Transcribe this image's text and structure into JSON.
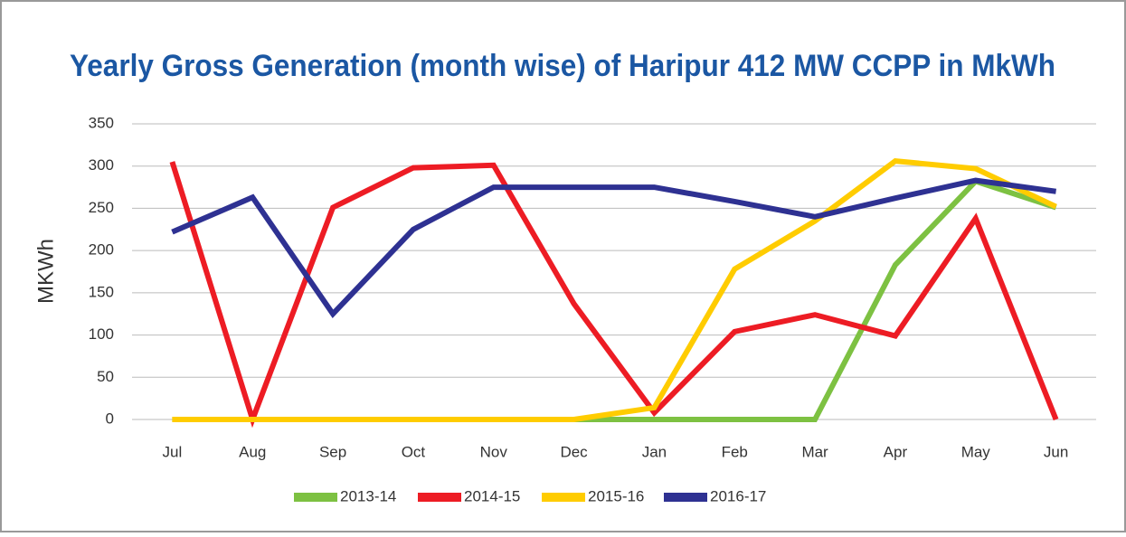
{
  "chart_data": {
    "type": "line",
    "title": "Yearly Gross Generation (month wise)  of Haripur 412 MW CCPP in MkWh",
    "y_label": "MKWh",
    "categories": [
      "Jul",
      "Aug",
      "Sep",
      "Oct",
      "Nov",
      "Dec",
      "Jan",
      "Feb",
      "Mar",
      "Apr",
      "May",
      "Jun"
    ],
    "series": [
      {
        "name": "2013-14",
        "color": "#7dc142",
        "values": [
          0,
          0,
          0,
          0,
          0,
          0,
          0,
          0,
          0,
          183,
          282,
          251
        ]
      },
      {
        "name": "2014-15",
        "color": "#ed1c24",
        "values": [
          305,
          0,
          251,
          298,
          301,
          137,
          8,
          104,
          124,
          99,
          238,
          0
        ]
      },
      {
        "name": "2015-16",
        "color": "#ffcc00",
        "values": [
          0,
          0,
          0,
          0,
          0,
          0,
          14,
          178,
          235,
          306,
          297,
          252
        ]
      },
      {
        "name": "2016-17",
        "color": "#2e3192",
        "values": [
          222,
          263,
          125,
          225,
          275,
          275,
          275,
          258,
          240,
          262,
          283,
          270
        ]
      }
    ],
    "ylim": [
      0,
      350
    ],
    "yticks": [
      0,
      50,
      100,
      150,
      200,
      250,
      300,
      350
    ],
    "grid": true,
    "legend": "bottom"
  }
}
